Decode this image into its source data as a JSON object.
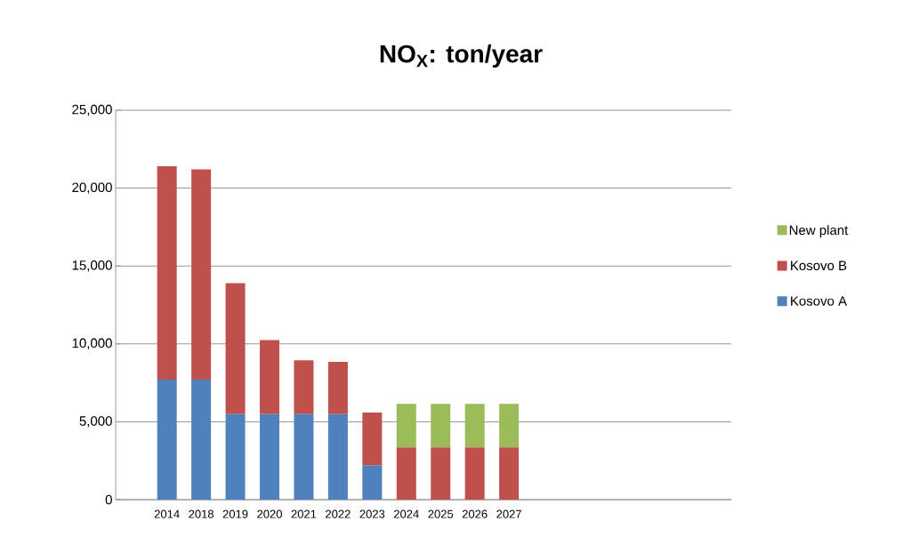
{
  "chart_data": {
    "type": "bar",
    "stacked": true,
    "title": "NO$_{X}$:  ton/year",
    "categories": [
      null,
      "2014",
      "2018",
      "2019",
      "2020",
      "2021",
      "2022",
      "2023",
      "2024",
      "2025",
      "2026",
      "2027",
      null,
      null,
      null,
      null,
      null,
      null
    ],
    "series": [
      {
        "name": "Kosovo A",
        "color": "#4f81bd",
        "values": [
          null,
          7700,
          7700,
          5500,
          5500,
          5500,
          5500,
          2200,
          0,
          0,
          0,
          0,
          null,
          null,
          null,
          null,
          null,
          null
        ]
      },
      {
        "name": "Kosovo B",
        "color": "#c0504d",
        "values": [
          null,
          13700,
          13500,
          8400,
          4750,
          3450,
          3350,
          3400,
          3350,
          3350,
          3350,
          3350,
          null,
          null,
          null,
          null,
          null,
          null
        ]
      },
      {
        "name": "New plant",
        "color": "#9bbb59",
        "values": [
          null,
          0,
          0,
          0,
          0,
          0,
          0,
          0,
          2800,
          2800,
          2800,
          2800,
          null,
          null,
          null,
          null,
          null,
          null
        ]
      }
    ],
    "ylim": [
      0,
      25000
    ],
    "yticks": [
      {
        "value": 0,
        "label": "0"
      },
      {
        "value": 5000,
        "label": "5,000"
      },
      {
        "value": 10000,
        "label": "10,000"
      },
      {
        "value": 15000,
        "label": "15,000"
      },
      {
        "value": 20000,
        "label": "20,000"
      },
      {
        "value": 25000,
        "label": "25,000"
      }
    ],
    "grid": "y",
    "legend": "right"
  }
}
